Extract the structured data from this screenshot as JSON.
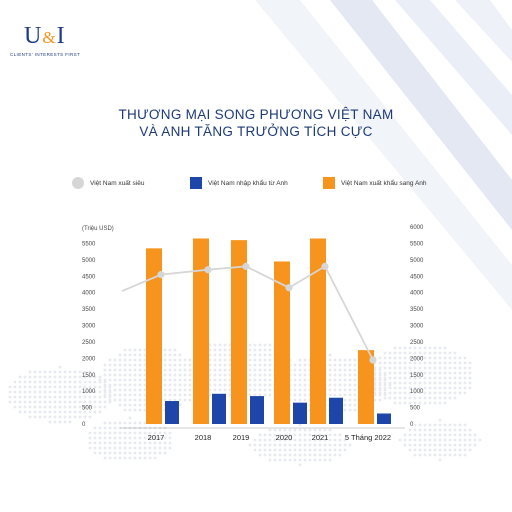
{
  "logo": {
    "mark_u": "U",
    "mark_amp": "&",
    "mark_i": "I",
    "tagline": "CLIENTS' INTERESTS FIRST"
  },
  "title_line1": "THƯƠNG MẠI SONG PHƯƠNG VIỆT NAM",
  "title_line2": "VÀ  ANH TĂNG TRƯỞNG TÍCH CỰC",
  "colors": {
    "import": "#1e45a8",
    "export": "#f7941d",
    "surplus": "#d6d6d6",
    "title": "#1b3a78"
  },
  "chart_data": {
    "type": "bar",
    "ylabel_unit": "(Triệu USD)",
    "categories": [
      "2017",
      "2018",
      "2019",
      "2020",
      "2021",
      "5 Tháng 2022"
    ],
    "ylim": [
      0,
      6000
    ],
    "yticks": [
      0,
      500,
      1000,
      1500,
      2000,
      2500,
      3000,
      3500,
      4000,
      4500,
      5000,
      5500,
      6000
    ],
    "series": [
      {
        "name": "Việt Nam xuất siêu",
        "type": "line",
        "values": [
          4550,
          4700,
          4800,
          4150,
          4800,
          1950
        ],
        "start_value": 4050
      },
      {
        "name": "Việt Nam nhập khẩu từ Anh",
        "type": "bar",
        "values": [
          700,
          920,
          850,
          650,
          800,
          320
        ]
      },
      {
        "name": "Việt Nam xuất khẩu sang Anh",
        "type": "bar",
        "values": [
          5350,
          5650,
          5600,
          4950,
          5650,
          2250
        ]
      }
    ],
    "legend_position": "top"
  }
}
